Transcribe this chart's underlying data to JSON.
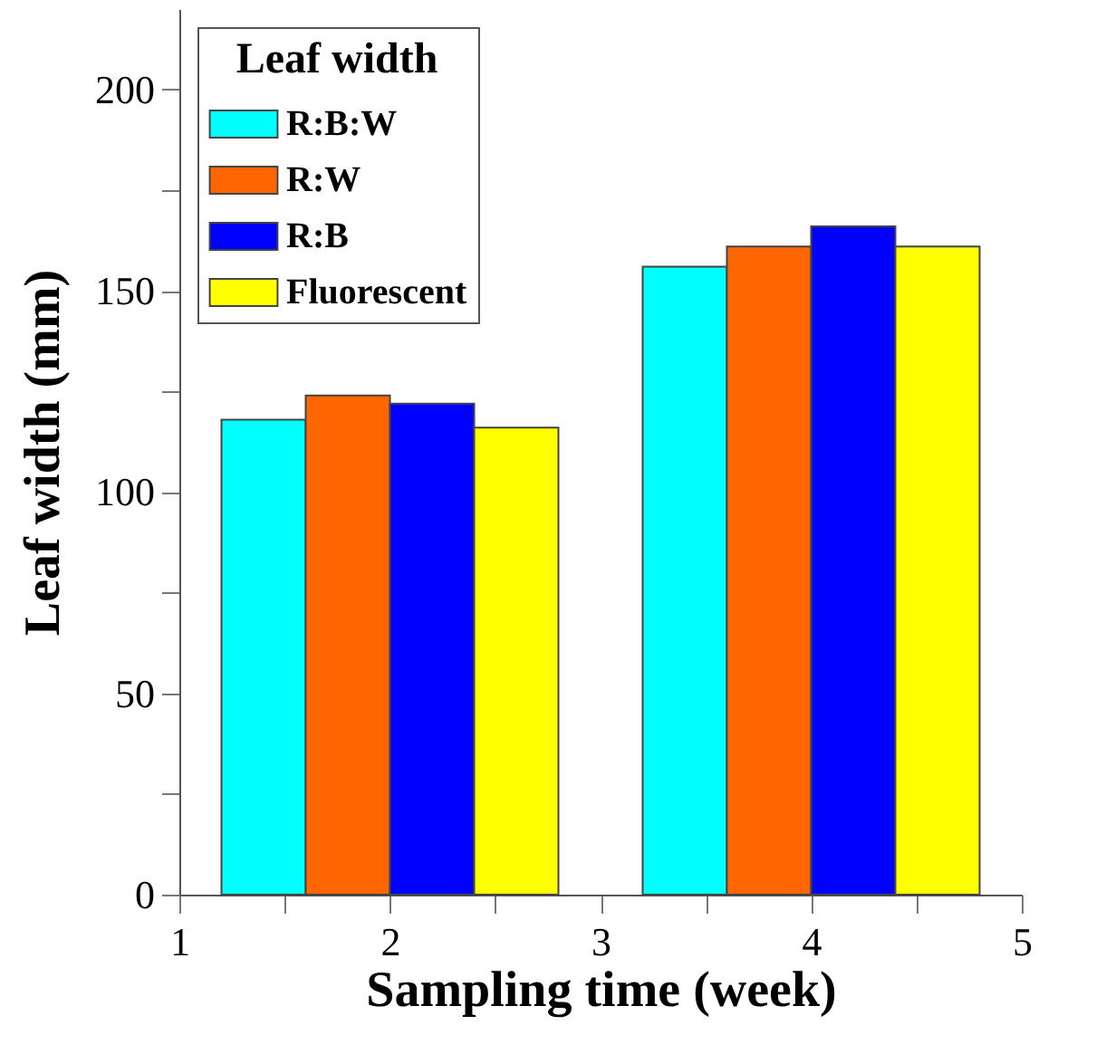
{
  "chart_data": {
    "type": "bar",
    "xlabel": "Sampling time (week)",
    "ylabel": "Leaf width (mm)",
    "legend_title": "Leaf width",
    "legend": "top left",
    "grid": false,
    "x": [
      2,
      4
    ],
    "series": [
      {
        "name": "R:B:W",
        "color": "#00ffff",
        "values": [
          118,
          156
        ]
      },
      {
        "name": "R:W",
        "color": "#ff6600",
        "values": [
          124,
          161
        ]
      },
      {
        "name": "R:B",
        "color": "#0000ff",
        "values": [
          122,
          166
        ]
      },
      {
        "name": "Fluorescent",
        "color": "#ffff00",
        "values": [
          116,
          161
        ]
      }
    ],
    "xlim": [
      1,
      5
    ],
    "xticks": [
      1,
      {
        "value": 1.5,
        "label": null
      },
      2,
      {
        "value": 2.5,
        "label": null
      },
      3,
      {
        "value": 3.5,
        "label": null
      },
      4,
      {
        "value": 4.5,
        "label": null
      },
      5
    ],
    "ylim": [
      0,
      220
    ],
    "yticks": [
      0,
      {
        "value": 25,
        "label": null
      },
      50,
      {
        "value": 75,
        "label": null
      },
      100,
      {
        "value": 125,
        "label": null
      },
      150,
      {
        "value": 175,
        "label": null
      },
      200
    ]
  }
}
